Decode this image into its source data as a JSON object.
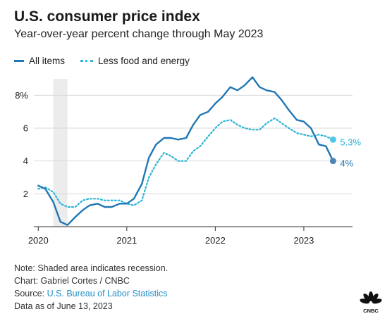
{
  "header": {
    "title": "U.S. consumer price index",
    "subtitle": "Year-over-year percent change through May 2023"
  },
  "legend": {
    "series1": "All items",
    "series2": "Less food and energy"
  },
  "footer": {
    "note": "Note: Shaded area indicates recession.",
    "chart_credit": "Chart: Gabriel Cortes / CNBC",
    "source_prefix": "Source: ",
    "source_name": "U.S. Bureau of Labor Statistics",
    "data_as_of": "Data as of June 13, 2023"
  },
  "logo": {
    "name": "cnbc-peacock-icon",
    "text": "CNBC"
  },
  "chart_data": {
    "type": "line",
    "title": "U.S. consumer price index",
    "xlim": [
      2019.95,
      2023.55
    ],
    "ylim": [
      0,
      9
    ],
    "y_ticks": [
      {
        "value": 2,
        "label": "2"
      },
      {
        "value": 4,
        "label": "4"
      },
      {
        "value": 6,
        "label": "6"
      },
      {
        "value": 8,
        "label": "8%"
      }
    ],
    "x_ticks": [
      {
        "value": 2020,
        "label": "2020"
      },
      {
        "value": 2021,
        "label": "2021"
      },
      {
        "value": 2022,
        "label": "2022"
      },
      {
        "value": 2023,
        "label": "2023"
      }
    ],
    "grid": true,
    "recession": [
      2020.17,
      2020.33
    ],
    "colors": {
      "all": "#1f77b4",
      "core": "#2bb5d6",
      "grid": "#d9d9d9",
      "shade": "#ececec"
    },
    "series": [
      {
        "name": "All items",
        "style": "solid",
        "end_label": "4%",
        "points": [
          [
            2020.0,
            2.5
          ],
          [
            2020.08,
            2.3
          ],
          [
            2020.17,
            1.5
          ],
          [
            2020.25,
            0.3
          ],
          [
            2020.33,
            0.1
          ],
          [
            2020.42,
            0.6
          ],
          [
            2020.5,
            1.0
          ],
          [
            2020.58,
            1.3
          ],
          [
            2020.67,
            1.4
          ],
          [
            2020.75,
            1.2
          ],
          [
            2020.83,
            1.2
          ],
          [
            2020.92,
            1.4
          ],
          [
            2021.0,
            1.4
          ],
          [
            2021.08,
            1.7
          ],
          [
            2021.17,
            2.6
          ],
          [
            2021.25,
            4.2
          ],
          [
            2021.33,
            5.0
          ],
          [
            2021.42,
            5.4
          ],
          [
            2021.5,
            5.4
          ],
          [
            2021.58,
            5.3
          ],
          [
            2021.67,
            5.4
          ],
          [
            2021.75,
            6.2
          ],
          [
            2021.83,
            6.8
          ],
          [
            2021.92,
            7.0
          ],
          [
            2022.0,
            7.5
          ],
          [
            2022.08,
            7.9
          ],
          [
            2022.17,
            8.5
          ],
          [
            2022.25,
            8.3
          ],
          [
            2022.33,
            8.6
          ],
          [
            2022.42,
            9.1
          ],
          [
            2022.5,
            8.5
          ],
          [
            2022.58,
            8.3
          ],
          [
            2022.67,
            8.2
          ],
          [
            2022.75,
            7.7
          ],
          [
            2022.83,
            7.1
          ],
          [
            2022.92,
            6.5
          ],
          [
            2023.0,
            6.4
          ],
          [
            2023.08,
            6.0
          ],
          [
            2023.17,
            5.0
          ],
          [
            2023.25,
            4.9
          ],
          [
            2023.33,
            4.0
          ]
        ]
      },
      {
        "name": "Less food and energy",
        "style": "dotted",
        "end_label": "5.3%",
        "points": [
          [
            2020.0,
            2.3
          ],
          [
            2020.08,
            2.4
          ],
          [
            2020.17,
            2.1
          ],
          [
            2020.25,
            1.4
          ],
          [
            2020.33,
            1.2
          ],
          [
            2020.42,
            1.2
          ],
          [
            2020.5,
            1.6
          ],
          [
            2020.58,
            1.7
          ],
          [
            2020.67,
            1.7
          ],
          [
            2020.75,
            1.6
          ],
          [
            2020.83,
            1.6
          ],
          [
            2020.92,
            1.6
          ],
          [
            2021.0,
            1.4
          ],
          [
            2021.08,
            1.3
          ],
          [
            2021.17,
            1.6
          ],
          [
            2021.25,
            3.0
          ],
          [
            2021.33,
            3.8
          ],
          [
            2021.42,
            4.5
          ],
          [
            2021.5,
            4.3
          ],
          [
            2021.58,
            4.0
          ],
          [
            2021.67,
            4.0
          ],
          [
            2021.75,
            4.6
          ],
          [
            2021.83,
            4.9
          ],
          [
            2021.92,
            5.5
          ],
          [
            2022.0,
            6.0
          ],
          [
            2022.08,
            6.4
          ],
          [
            2022.17,
            6.5
          ],
          [
            2022.25,
            6.2
          ],
          [
            2022.33,
            6.0
          ],
          [
            2022.42,
            5.9
          ],
          [
            2022.5,
            5.9
          ],
          [
            2022.58,
            6.3
          ],
          [
            2022.67,
            6.6
          ],
          [
            2022.75,
            6.3
          ],
          [
            2022.83,
            6.0
          ],
          [
            2022.92,
            5.7
          ],
          [
            2023.0,
            5.6
          ],
          [
            2023.08,
            5.5
          ],
          [
            2023.17,
            5.6
          ],
          [
            2023.25,
            5.5
          ],
          [
            2023.33,
            5.3
          ]
        ]
      }
    ]
  }
}
